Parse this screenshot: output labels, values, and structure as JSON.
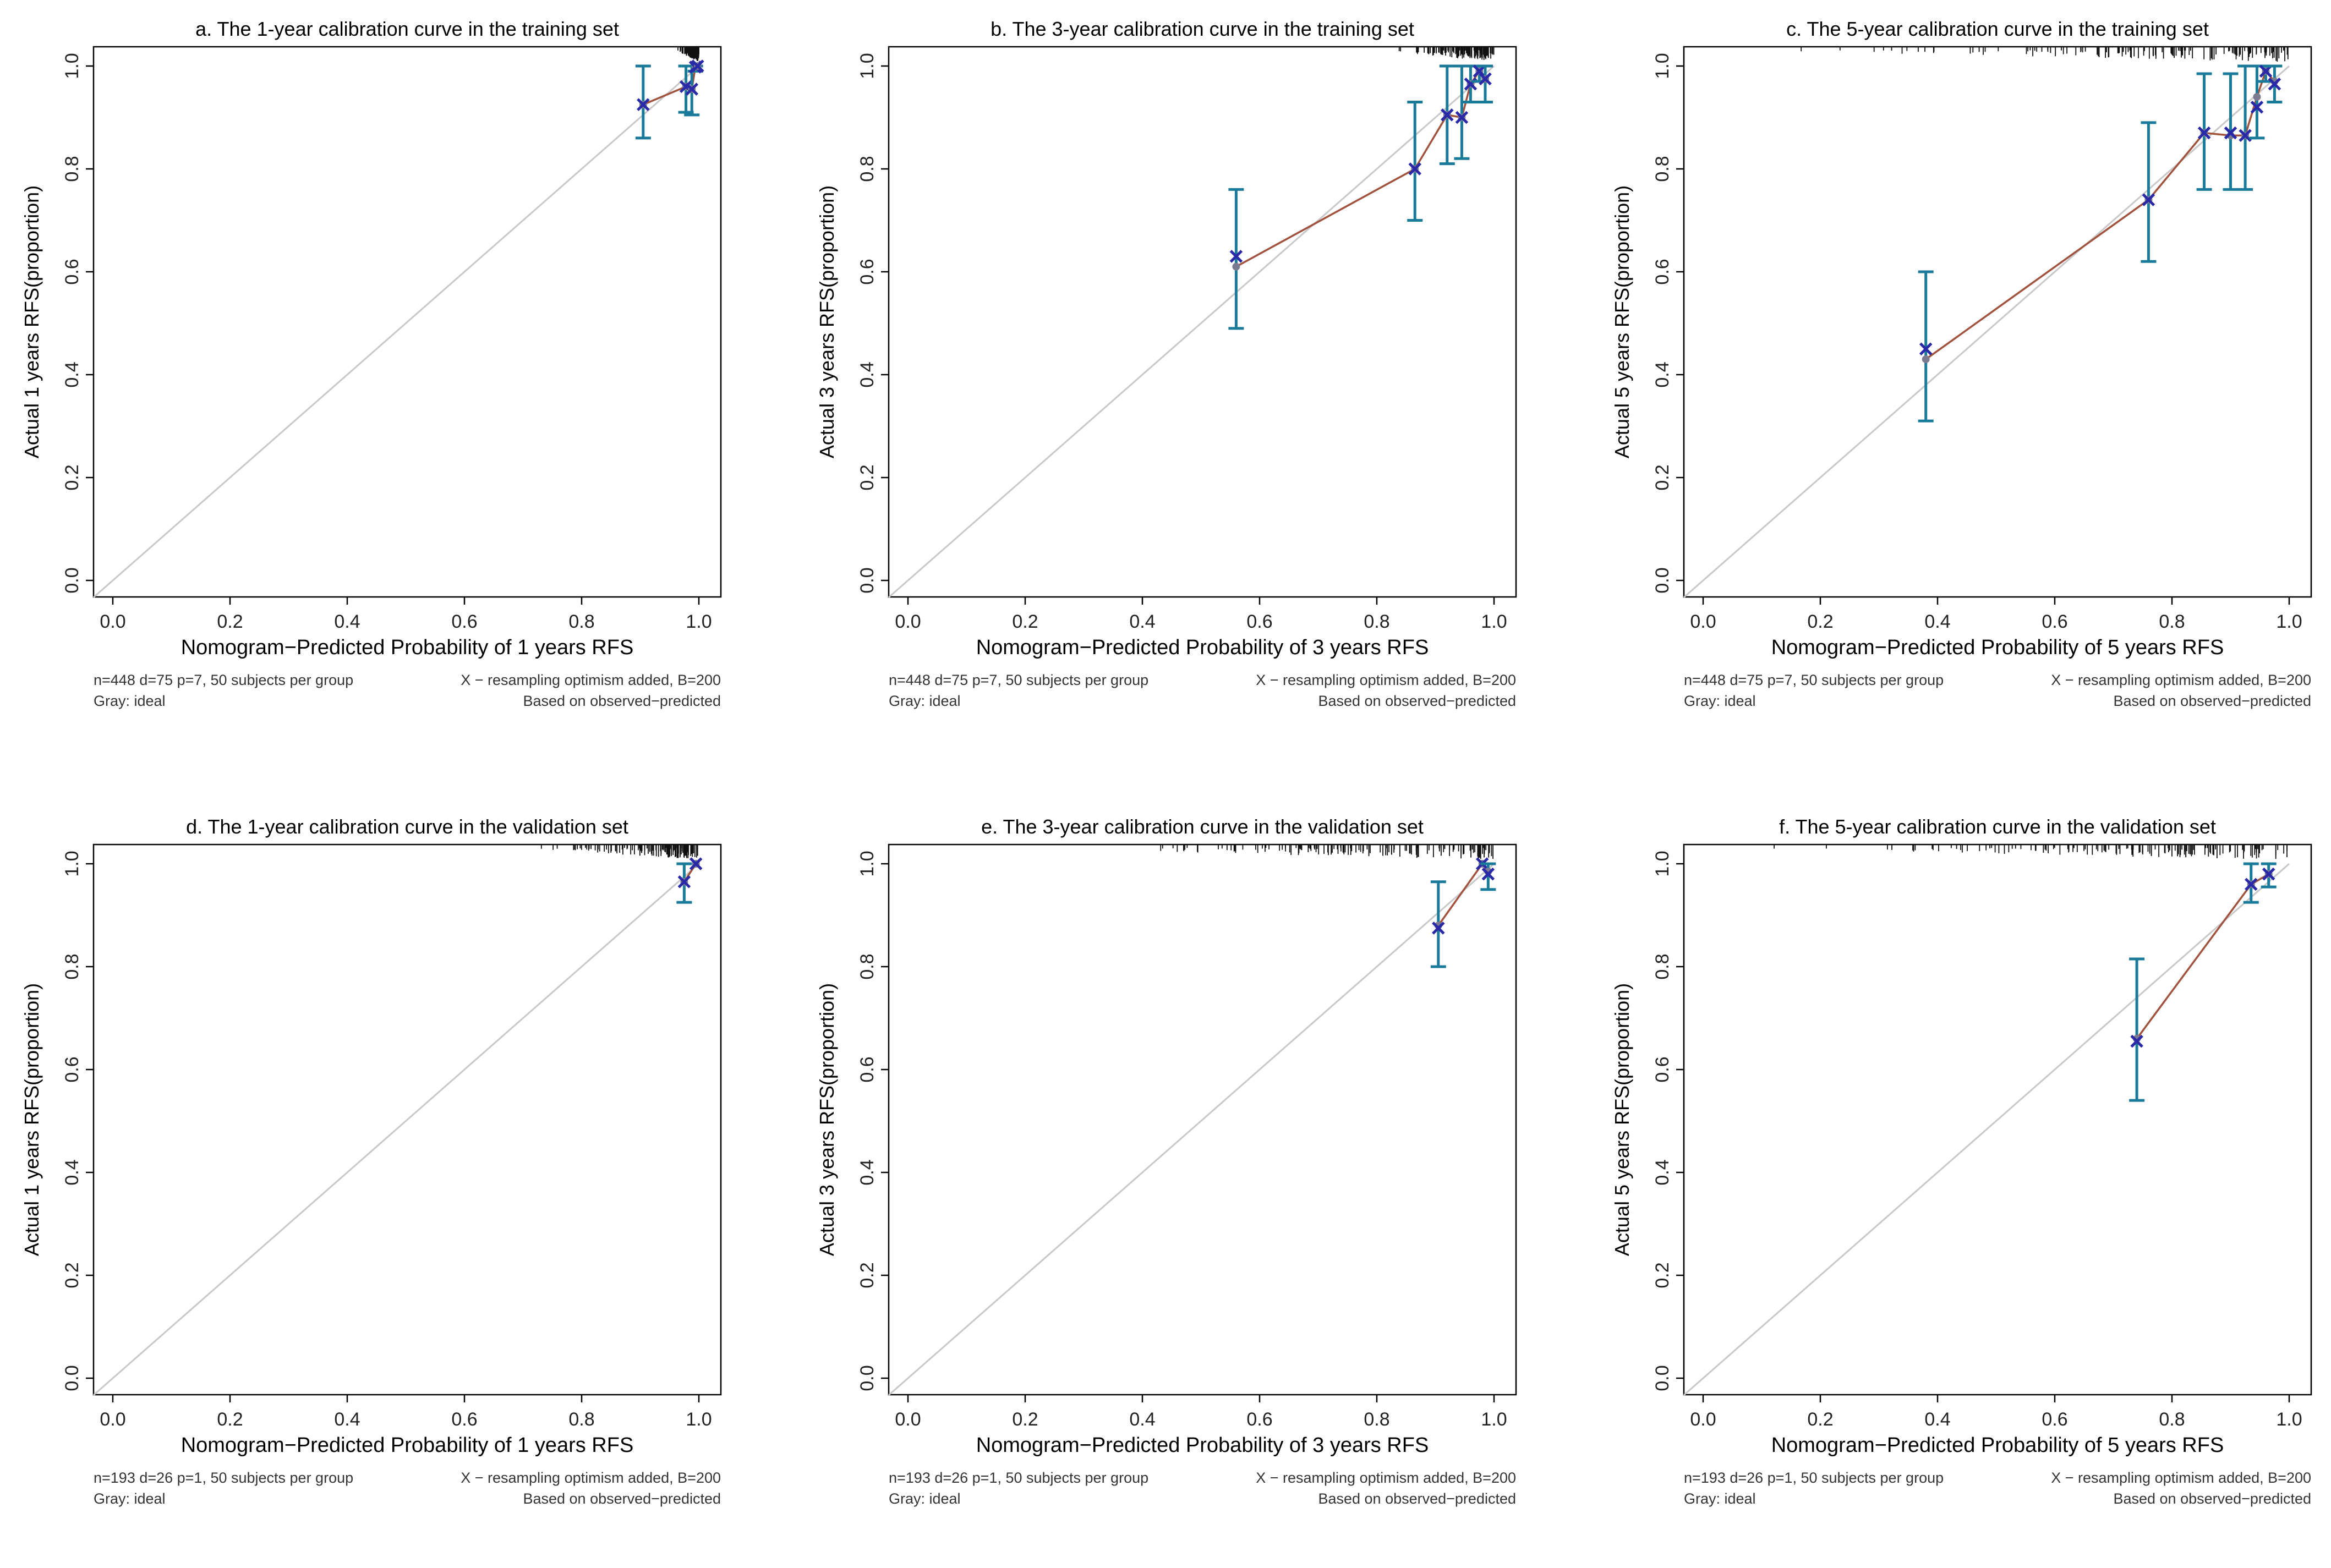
{
  "colors": {
    "ideal_line": "#c8c8c8",
    "apparent_line": "#a0523d",
    "error_bar": "#1a7a9a",
    "x_marker": "#2a2aa8",
    "point": "#7a7a90",
    "axis": "#000000"
  },
  "chart_data": [
    {
      "type": "scatter",
      "title": "a. The 1-year calibration curve in the training set",
      "xlabel": "Nomogram−Predicted Probability of 1 years RFS",
      "ylabel": "Actual 1 years RFS(proportion)",
      "xlim": [
        0,
        1
      ],
      "ylim": [
        0,
        1
      ],
      "xticks": [
        "0.0",
        "0.2",
        "0.4",
        "0.6",
        "0.8",
        "1.0"
      ],
      "yticks": [
        "0.0",
        "0.2",
        "0.4",
        "0.6",
        "0.8",
        "1.0"
      ],
      "note_left_1": "n=448 d=75 p=7, 50 subjects per group",
      "note_left_2": "Gray: ideal",
      "note_right_1": "X − resampling optimism added, B=200",
      "note_right_2": "Based on observed−predicted",
      "points": [
        {
          "x": 0.905,
          "y": 0.925,
          "lo": 0.86,
          "hi": 1.0,
          "corrected": 0.925
        },
        {
          "x": 0.978,
          "y": 0.96,
          "lo": 0.91,
          "hi": 1.0,
          "corrected": 0.96
        },
        {
          "x": 0.988,
          "y": 0.955,
          "lo": 0.905,
          "hi": 1.0,
          "corrected": 0.955
        },
        {
          "x": 0.994,
          "y": 0.998,
          "lo": 0.99,
          "hi": 1.0,
          "corrected": 0.998
        },
        {
          "x": 0.998,
          "y": 1.0,
          "lo": 1.0,
          "hi": 1.0,
          "corrected": 1.0
        }
      ],
      "rug_from": 0.96
    },
    {
      "type": "scatter",
      "title": "b. The 3-year calibration curve in the training set",
      "xlabel": "Nomogram−Predicted Probability of 3 years RFS",
      "ylabel": "Actual 3 years RFS(proportion)",
      "xlim": [
        0,
        1
      ],
      "ylim": [
        0,
        1
      ],
      "xticks": [
        "0.0",
        "0.2",
        "0.4",
        "0.6",
        "0.8",
        "1.0"
      ],
      "yticks": [
        "0.0",
        "0.2",
        "0.4",
        "0.6",
        "0.8",
        "1.0"
      ],
      "note_left_1": "n=448 d=75 p=7, 50 subjects per group",
      "note_left_2": "Gray: ideal",
      "note_right_1": "X − resampling optimism added, B=200",
      "note_right_2": "Based on observed−predicted",
      "points": [
        {
          "x": 0.56,
          "y": 0.61,
          "lo": 0.49,
          "hi": 0.76,
          "corrected": 0.63
        },
        {
          "x": 0.865,
          "y": 0.8,
          "lo": 0.7,
          "hi": 0.93,
          "corrected": 0.8
        },
        {
          "x": 0.92,
          "y": 0.905,
          "lo": 0.81,
          "hi": 1.0,
          "corrected": 0.905
        },
        {
          "x": 0.945,
          "y": 0.9,
          "lo": 0.82,
          "hi": 1.0,
          "corrected": 0.9
        },
        {
          "x": 0.96,
          "y": 0.965,
          "lo": 0.93,
          "hi": 1.0,
          "corrected": 0.965
        },
        {
          "x": 0.975,
          "y": 0.99,
          "lo": 0.97,
          "hi": 1.0,
          "corrected": 0.99
        },
        {
          "x": 0.985,
          "y": 0.975,
          "lo": 0.93,
          "hi": 1.0,
          "corrected": 0.975
        }
      ],
      "rug_from": 0.8
    },
    {
      "type": "scatter",
      "title": "c. The 5-year calibration curve in the training set",
      "xlabel": "Nomogram−Predicted Probability of 5 years RFS",
      "ylabel": "Actual 5 years RFS(proportion)",
      "xlim": [
        0,
        1
      ],
      "ylim": [
        0,
        1
      ],
      "xticks": [
        "0.0",
        "0.2",
        "0.4",
        "0.6",
        "0.8",
        "1.0"
      ],
      "yticks": [
        "0.0",
        "0.2",
        "0.4",
        "0.6",
        "0.8",
        "1.0"
      ],
      "note_left_1": "n=448 d=75 p=7, 50 subjects per group",
      "note_left_2": "Gray: ideal",
      "note_right_1": "X − resampling optimism added, B=200",
      "note_right_2": "Based on observed−predicted",
      "points": [
        {
          "x": 0.38,
          "y": 0.43,
          "lo": 0.31,
          "hi": 0.6,
          "corrected": 0.45
        },
        {
          "x": 0.76,
          "y": 0.74,
          "lo": 0.62,
          "hi": 0.89,
          "corrected": 0.74
        },
        {
          "x": 0.855,
          "y": 0.87,
          "lo": 0.76,
          "hi": 0.985,
          "corrected": 0.87
        },
        {
          "x": 0.9,
          "y": 0.865,
          "lo": 0.76,
          "hi": 0.985,
          "corrected": 0.87
        },
        {
          "x": 0.925,
          "y": 0.865,
          "lo": 0.76,
          "hi": 1.0,
          "corrected": 0.865
        },
        {
          "x": 0.945,
          "y": 0.94,
          "lo": 0.86,
          "hi": 1.0,
          "corrected": 0.92
        },
        {
          "x": 0.96,
          "y": 0.99,
          "lo": 0.97,
          "hi": 1.0,
          "corrected": 0.99
        },
        {
          "x": 0.975,
          "y": 0.97,
          "lo": 0.93,
          "hi": 1.0,
          "corrected": 0.965
        }
      ],
      "rug_from": 0.05
    },
    {
      "type": "scatter",
      "title": "d. The 1-year calibration curve in the validation set",
      "xlabel": "Nomogram−Predicted Probability of 1 years RFS",
      "ylabel": "Actual 1 years RFS(proportion)",
      "xlim": [
        0,
        1
      ],
      "ylim": [
        0,
        1
      ],
      "xticks": [
        "0.0",
        "0.2",
        "0.4",
        "0.6",
        "0.8",
        "1.0"
      ],
      "yticks": [
        "0.0",
        "0.2",
        "0.4",
        "0.6",
        "0.8",
        "1.0"
      ],
      "note_left_1": "n=193 d=26 p=1, 50 subjects per group",
      "note_left_2": "Gray: ideal",
      "note_right_1": "X − resampling optimism added, B=200",
      "note_right_2": "Based on observed−predicted",
      "points": [
        {
          "x": 0.975,
          "y": 0.965,
          "lo": 0.925,
          "hi": 1.0,
          "corrected": 0.965
        },
        {
          "x": 0.995,
          "y": 1.0,
          "lo": 1.0,
          "hi": 1.0,
          "corrected": 1.0
        }
      ],
      "rug_from": 0.7
    },
    {
      "type": "scatter",
      "title": "e. The 3-year calibration curve in the validation set",
      "xlabel": "Nomogram−Predicted Probability of 3 years RFS",
      "ylabel": "Actual 3 years RFS(proportion)",
      "xlim": [
        0,
        1
      ],
      "ylim": [
        0,
        1
      ],
      "xticks": [
        "0.0",
        "0.2",
        "0.4",
        "0.6",
        "0.8",
        "1.0"
      ],
      "yticks": [
        "0.0",
        "0.2",
        "0.4",
        "0.6",
        "0.8",
        "1.0"
      ],
      "note_left_1": "n=193 d=26 p=1, 50 subjects per group",
      "note_left_2": "Gray: ideal",
      "note_right_1": "X − resampling optimism added, B=200",
      "note_right_2": "Based on observed−predicted",
      "points": [
        {
          "x": 0.905,
          "y": 0.88,
          "lo": 0.8,
          "hi": 0.965,
          "corrected": 0.875
        },
        {
          "x": 0.98,
          "y": 1.0,
          "lo": 1.0,
          "hi": 1.0,
          "corrected": 1.0
        },
        {
          "x": 0.99,
          "y": 0.985,
          "lo": 0.95,
          "hi": 1.0,
          "corrected": 0.98
        }
      ],
      "rug_from": 0.15
    },
    {
      "type": "scatter",
      "title": "f. The 5-year calibration curve in the validation set",
      "xlabel": "Nomogram−Predicted Probability of 5 years RFS",
      "ylabel": "Actual 5 years RFS(proportion)",
      "xlim": [
        0,
        1
      ],
      "ylim": [
        0,
        1
      ],
      "xticks": [
        "0.0",
        "0.2",
        "0.4",
        "0.6",
        "0.8",
        "1.0"
      ],
      "yticks": [
        "0.0",
        "0.2",
        "0.4",
        "0.6",
        "0.8",
        "1.0"
      ],
      "note_left_1": "n=193 d=26 p=1, 50 subjects per group",
      "note_left_2": "Gray: ideal",
      "note_right_1": "X − resampling optimism added, B=200",
      "note_right_2": "Based on observed−predicted",
      "points": [
        {
          "x": 0.74,
          "y": 0.66,
          "lo": 0.54,
          "hi": 0.815,
          "corrected": 0.655
        },
        {
          "x": 0.935,
          "y": 0.96,
          "lo": 0.925,
          "hi": 1.0,
          "corrected": 0.96
        },
        {
          "x": 0.965,
          "y": 0.98,
          "lo": 0.955,
          "hi": 1.0,
          "corrected": 0.98
        }
      ],
      "rug_from": 0.0
    }
  ]
}
